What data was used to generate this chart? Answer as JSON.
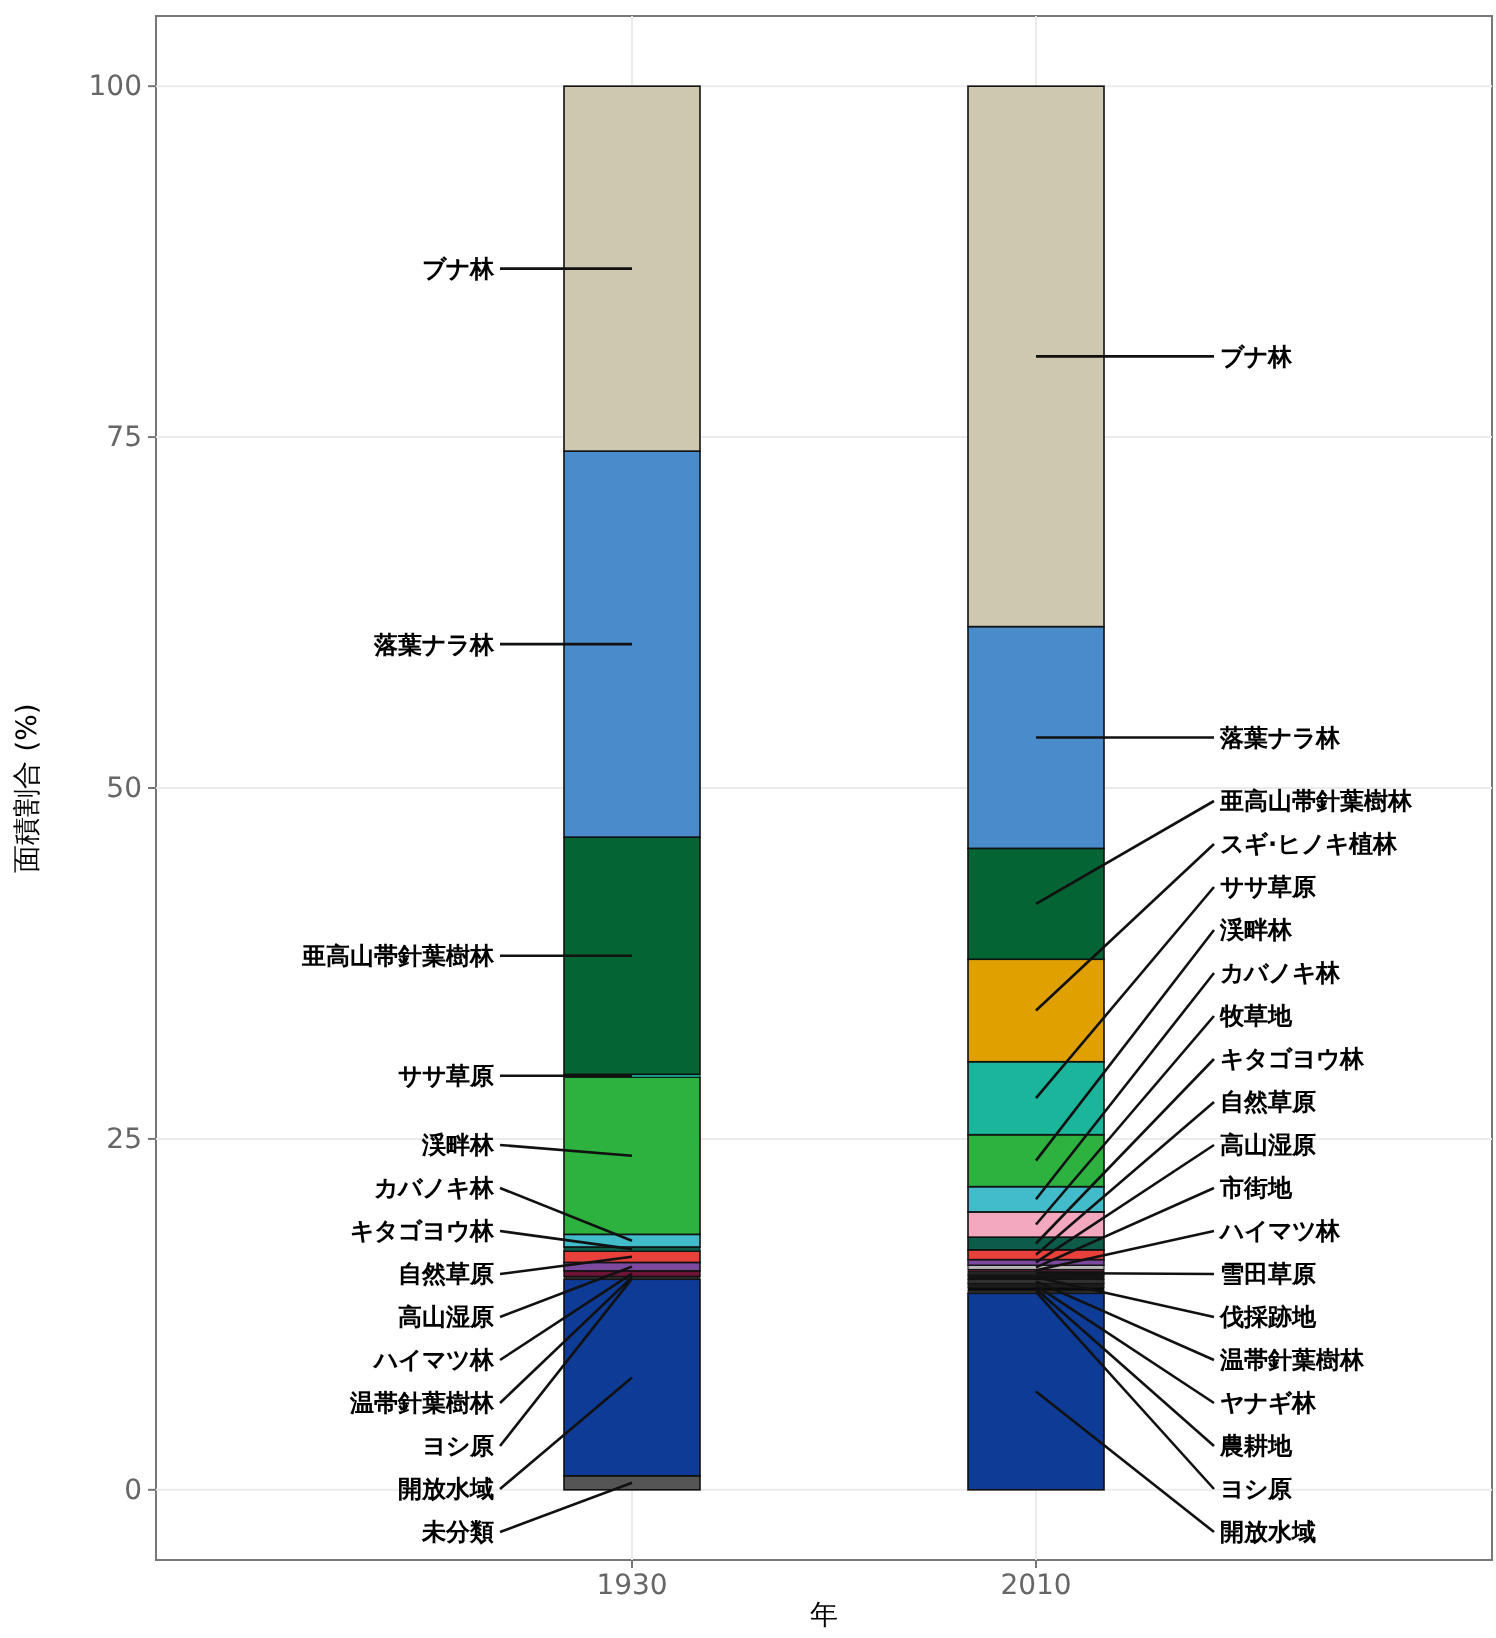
{
  "chart_data": {
    "type": "bar",
    "stacked": true,
    "xlabel": "年",
    "ylabel": "面積割合 (%)",
    "categories": [
      "1930",
      "2010"
    ],
    "ylim": [
      -5,
      105
    ],
    "yticks": [
      0,
      25,
      50,
      75,
      100
    ],
    "grid": true,
    "series": [
      {
        "name": "未分類",
        "color": "#555555",
        "values": [
          1.0,
          null
        ]
      },
      {
        "name": "開放水域",
        "color": "#0d3b96",
        "values": [
          14.0,
          14.0
        ]
      },
      {
        "name": "ヨシ原",
        "color": "#2a2a2a",
        "values": [
          0.1,
          0.2
        ]
      },
      {
        "name": "農耕地",
        "color": "#0a0a0a",
        "values": [
          null,
          0.2
        ]
      },
      {
        "name": "ヤナギ林",
        "color": "#1c1c1c",
        "values": [
          null,
          0.3
        ]
      },
      {
        "name": "温帯針葉樹林",
        "color": "#303030",
        "values": [
          0.1,
          0.3
        ]
      },
      {
        "name": "伐採跡地",
        "color": "#141414",
        "values": [
          null,
          0.3
        ]
      },
      {
        "name": "雪田草原",
        "color": "#242424",
        "values": [
          null,
          0.3
        ]
      },
      {
        "name": "ハイマツ林",
        "color": "#6e1537",
        "values": [
          0.4,
          0.1
        ]
      },
      {
        "name": "市街地",
        "color": "#b8b8b8",
        "values": [
          null,
          0.3
        ]
      },
      {
        "name": "高山湿原",
        "color": "#7b4a9e",
        "values": [
          0.6,
          0.4
        ]
      },
      {
        "name": "自然草原",
        "color": "#e8403a",
        "values": [
          0.8,
          0.7
        ]
      },
      {
        "name": "キタゴヨウ林",
        "color": "#0d5c4a",
        "values": [
          0.3,
          0.9
        ]
      },
      {
        "name": "牧草地",
        "color": "#f4a8c0",
        "values": [
          null,
          1.8
        ]
      },
      {
        "name": "カバノキ林",
        "color": "#42bccb",
        "values": [
          0.9,
          1.8
        ]
      },
      {
        "name": "渓畔林",
        "color": "#2db13f",
        "values": [
          11.2,
          3.7
        ]
      },
      {
        "name": "ササ草原",
        "color": "#1ab59a",
        "values": [
          0.2,
          5.2
        ]
      },
      {
        "name": "スギ·ヒノキ植林",
        "color": "#e0a000",
        "values": [
          null,
          7.3
        ]
      },
      {
        "name": "亜高山帯針葉樹林",
        "color": "#046434",
        "values": [
          16.9,
          7.9
        ]
      },
      {
        "name": "落葉ナラ林",
        "color": "#4a8bcb",
        "values": [
          27.5,
          15.8
        ]
      },
      {
        "name": "ブナ林",
        "color": "#cfc8b0",
        "values": [
          26.0,
          38.5
        ]
      }
    ]
  }
}
